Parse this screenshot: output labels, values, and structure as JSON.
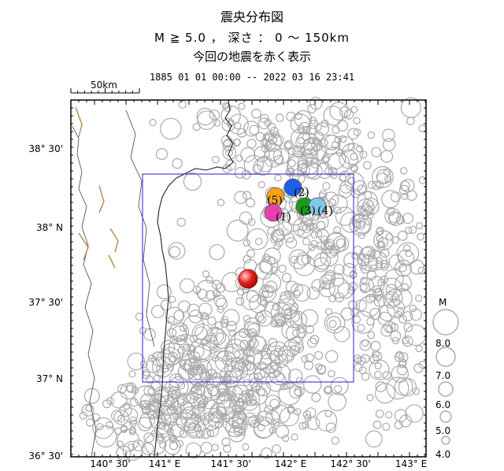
{
  "header": {
    "title": "震央分布図",
    "condition": "M ≧ 5.0 ， 深さ ： 0 ～ 150km",
    "subtitle": "今回の地震を赤く表示",
    "period": "1885 01 01 00:00 -- 2022 03 16 23:41"
  },
  "scale_label": "50km",
  "lat_labels": [
    "38° 30'",
    "38° N",
    "37° 30'",
    "37° N",
    "36° 30'"
  ],
  "lon_labels": [
    "140° 30'",
    "141° E",
    "141° 30'",
    "142° E",
    "142° 30'",
    "143° E"
  ],
  "legend": {
    "title": "M",
    "items": [
      "8.0",
      "7.0",
      "6.0",
      "5.0",
      "4.0"
    ]
  },
  "events": [
    {
      "label": "(1)",
      "color": "#e83fb0"
    },
    {
      "label": "(2)",
      "color": "#1f5fe8"
    },
    {
      "label": "(3)",
      "color": "#1a9a1a"
    },
    {
      "label": "(4)",
      "color": "#7ec8e8"
    },
    {
      "label": "(5)",
      "color": "#f5a020"
    }
  ],
  "current_event": {
    "color": "#e82020"
  },
  "colors": {
    "background_event": "#aaaaaa",
    "box": "#2020cc",
    "fault": "#b8864a"
  }
}
